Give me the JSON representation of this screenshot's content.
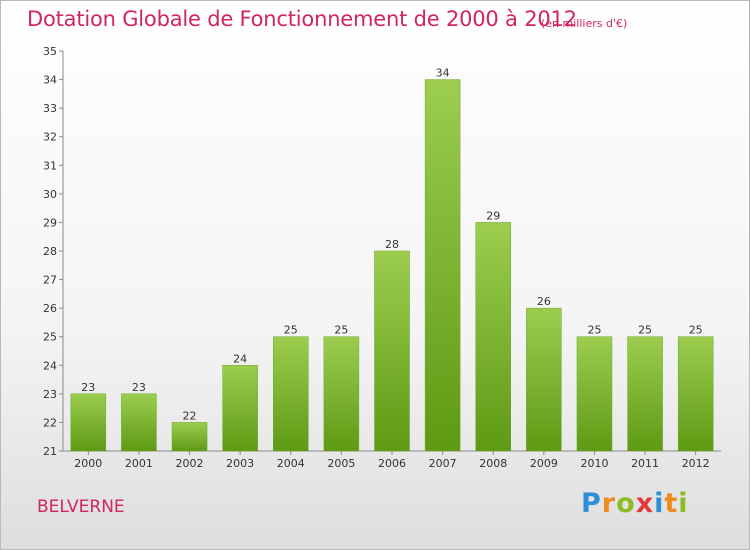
{
  "header": {
    "title": "Dotation Globale de Fonctionnement de 2000 à 2012",
    "subtitle": "(en milliers d'€)"
  },
  "footer": {
    "commune": "BELVERNE",
    "logo": [
      "P",
      "r",
      "o",
      "x",
      "i",
      "t",
      "i"
    ],
    "logo_colors": [
      "#2a8fd4",
      "#ef8a1b",
      "#8dbb24",
      "#e23a3a",
      "#2a8fd4",
      "#ef8a1b",
      "#8dbb24"
    ]
  },
  "chart_data": {
    "type": "bar",
    "categories": [
      "2000",
      "2001",
      "2002",
      "2003",
      "2004",
      "2005",
      "2006",
      "2007",
      "2008",
      "2009",
      "2010",
      "2011",
      "2012"
    ],
    "values": [
      23,
      23,
      22,
      24,
      25,
      25,
      28,
      34,
      29,
      26,
      25,
      25,
      25
    ],
    "title": "Dotation Globale de Fonctionnement de 2000 à 2012",
    "subtitle": "(en milliers d'€)",
    "xlabel": "",
    "ylabel": "",
    "ylim": [
      21,
      35
    ],
    "yticks": [
      21,
      22,
      23,
      24,
      25,
      26,
      27,
      28,
      29,
      30,
      31,
      32,
      33,
      34,
      35
    ],
    "grid": false,
    "legend": "none",
    "bar_color_top": "#9ccd4f",
    "bar_color_bottom": "#5e9a14",
    "axis_color": "#8a8a8a"
  }
}
